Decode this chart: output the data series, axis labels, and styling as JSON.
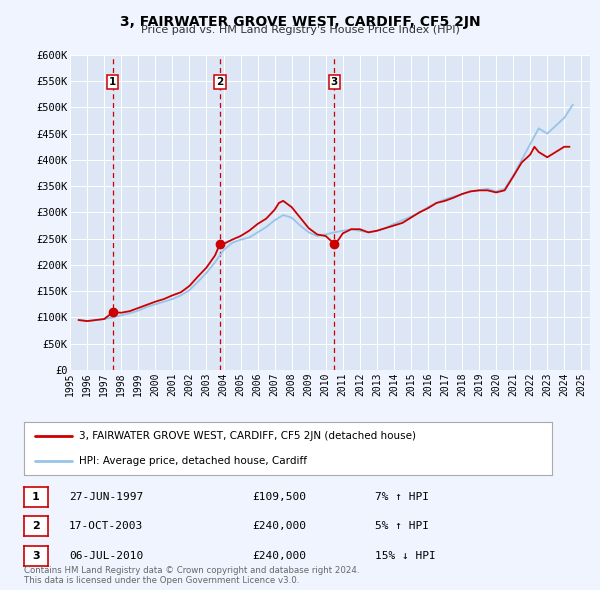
{
  "title": "3, FAIRWATER GROVE WEST, CARDIFF, CF5 2JN",
  "subtitle": "Price paid vs. HM Land Registry's House Price Index (HPI)",
  "background_color": "#f0f4ff",
  "plot_bg_color": "#dce6f5",
  "grid_color": "#ffffff",
  "ylim": [
    0,
    600000
  ],
  "yticks": [
    0,
    50000,
    100000,
    150000,
    200000,
    250000,
    300000,
    350000,
    400000,
    450000,
    500000,
    550000,
    600000
  ],
  "xlim_start": 1995.3,
  "xlim_end": 2025.5,
  "xticks": [
    1995,
    1996,
    1997,
    1998,
    1999,
    2000,
    2001,
    2002,
    2003,
    2004,
    2005,
    2006,
    2007,
    2008,
    2009,
    2010,
    2011,
    2012,
    2013,
    2014,
    2015,
    2016,
    2017,
    2018,
    2019,
    2020,
    2021,
    2022,
    2023,
    2024,
    2025
  ],
  "hpi_color": "#99c4e8",
  "price_color": "#cc0000",
  "sale_marker_color": "#cc0000",
  "sale_vline_color": "#cc0000",
  "legend_label_price": "3, FAIRWATER GROVE WEST, CARDIFF, CF5 2JN (detached house)",
  "legend_label_hpi": "HPI: Average price, detached house, Cardiff",
  "transactions": [
    {
      "num": 1,
      "date": "27-JUN-1997",
      "year": 1997.49,
      "price": 109500,
      "pct": "7%",
      "dir": "↑"
    },
    {
      "num": 2,
      "date": "17-OCT-2003",
      "year": 2003.79,
      "price": 240000,
      "pct": "5%",
      "dir": "↑"
    },
    {
      "num": 3,
      "date": "06-JUL-2010",
      "year": 2010.51,
      "price": 240000,
      "pct": "15%",
      "dir": "↓"
    }
  ],
  "footer": "Contains HM Land Registry data © Crown copyright and database right 2024.\nThis data is licensed under the Open Government Licence v3.0.",
  "hpi_data": {
    "years": [
      1995.5,
      1996.0,
      1996.5,
      1997.0,
      1997.5,
      1998.0,
      1998.5,
      1999.0,
      1999.5,
      2000.0,
      2000.5,
      2001.0,
      2001.5,
      2002.0,
      2002.5,
      2003.0,
      2003.5,
      2004.0,
      2004.5,
      2005.0,
      2005.5,
      2006.0,
      2006.5,
      2007.0,
      2007.5,
      2008.0,
      2008.5,
      2009.0,
      2009.5,
      2010.0,
      2010.5,
      2011.0,
      2011.5,
      2012.0,
      2012.5,
      2013.0,
      2013.5,
      2014.0,
      2014.5,
      2015.0,
      2015.5,
      2016.0,
      2016.5,
      2017.0,
      2017.5,
      2018.0,
      2018.5,
      2019.0,
      2019.5,
      2020.0,
      2020.5,
      2021.0,
      2021.5,
      2022.0,
      2022.5,
      2023.0,
      2023.5,
      2024.0,
      2024.5
    ],
    "values": [
      95000,
      93000,
      95000,
      97000,
      100000,
      104000,
      108000,
      113000,
      120000,
      125000,
      130000,
      135000,
      142000,
      152000,
      168000,
      185000,
      205000,
      228000,
      242000,
      248000,
      252000,
      262000,
      272000,
      285000,
      295000,
      290000,
      275000,
      262000,
      255000,
      258000,
      262000,
      265000,
      268000,
      265000,
      262000,
      265000,
      270000,
      278000,
      285000,
      292000,
      300000,
      310000,
      318000,
      325000,
      330000,
      335000,
      340000,
      342000,
      345000,
      340000,
      345000,
      370000,
      400000,
      430000,
      460000,
      450000,
      465000,
      480000,
      505000
    ]
  },
  "price_data": {
    "years": [
      1995.5,
      1996.0,
      1996.5,
      1997.0,
      1997.49,
      1998.0,
      1998.5,
      1999.0,
      1999.5,
      2000.0,
      2000.5,
      2001.0,
      2001.5,
      2002.0,
      2002.5,
      2003.0,
      2003.5,
      2003.79,
      2004.0,
      2004.5,
      2005.0,
      2005.5,
      2006.0,
      2006.5,
      2007.0,
      2007.25,
      2007.5,
      2008.0,
      2008.5,
      2009.0,
      2009.5,
      2010.0,
      2010.51,
      2010.75,
      2011.0,
      2011.5,
      2012.0,
      2012.5,
      2013.0,
      2013.5,
      2014.0,
      2014.5,
      2015.0,
      2015.5,
      2016.0,
      2016.5,
      2017.0,
      2017.5,
      2018.0,
      2018.5,
      2019.0,
      2019.5,
      2020.0,
      2020.5,
      2021.0,
      2021.5,
      2022.0,
      2022.25,
      2022.5,
      2023.0,
      2023.5,
      2024.0,
      2024.3
    ],
    "values": [
      95000,
      93000,
      95000,
      97000,
      109500,
      109000,
      112000,
      118000,
      124000,
      130000,
      135000,
      142000,
      148000,
      160000,
      178000,
      195000,
      218000,
      240000,
      240000,
      248000,
      255000,
      265000,
      278000,
      288000,
      305000,
      318000,
      322000,
      310000,
      290000,
      270000,
      258000,
      255000,
      240000,
      248000,
      260000,
      268000,
      268000,
      262000,
      265000,
      270000,
      275000,
      280000,
      290000,
      300000,
      308000,
      318000,
      322000,
      328000,
      335000,
      340000,
      342000,
      342000,
      338000,
      342000,
      368000,
      395000,
      410000,
      425000,
      415000,
      405000,
      415000,
      425000,
      425000
    ]
  }
}
